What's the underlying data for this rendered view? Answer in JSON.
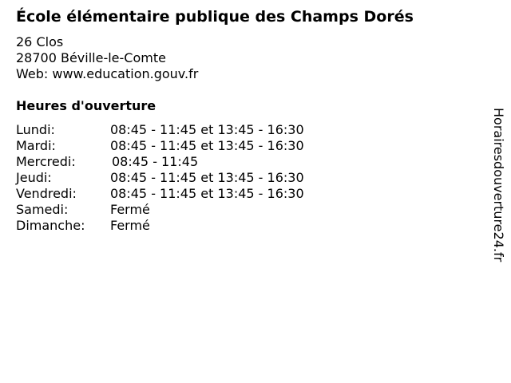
{
  "title": "École élémentaire publique des Champs Dorés",
  "address": {
    "street": "26 Clos",
    "city": "28700 Béville-le-Comte",
    "web": "Web: www.education.gouv.fr"
  },
  "hours_heading": "Heures d'ouverture",
  "hours": [
    {
      "day": "Lundi:",
      "time": "08:45 - 11:45 et 13:45 - 16:30"
    },
    {
      "day": "Mardi:",
      "time": "08:45 - 11:45 et 13:45 - 16:30"
    },
    {
      "day": "Mercredi:",
      "time": "08:45 - 11:45"
    },
    {
      "day": "Jeudi:",
      "time": "08:45 - 11:45 et 13:45 - 16:30"
    },
    {
      "day": "Vendredi:",
      "time": "08:45 - 11:45 et 13:45 - 16:30"
    },
    {
      "day": "Samedi:",
      "time": "Fermé"
    },
    {
      "day": "Dimanche:",
      "time": "Fermé"
    }
  ],
  "watermark": "Horairesdouverture24.fr"
}
